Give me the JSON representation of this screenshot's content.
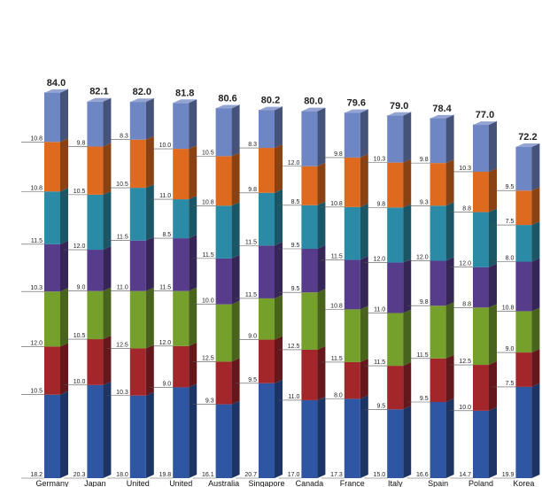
{
  "chart_data": {
    "type": "bar",
    "stacked": true,
    "categories": [
      "Germany",
      "Japan",
      "United States",
      "United Kingdom",
      "Australia",
      "Singapore",
      "Canada",
      "France",
      "Italy",
      "Spain",
      "Poland",
      "Korea"
    ],
    "totals": [
      84.0,
      82.1,
      82.0,
      81.8,
      80.6,
      80.2,
      80.0,
      79.6,
      79.0,
      78.4,
      77.0,
      72.2
    ],
    "series": [
      {
        "color": "#2f56a3",
        "values": [
          18.2,
          20.3,
          18.0,
          19.8,
          16.1,
          20.7,
          17.0,
          17.3,
          15.0,
          16.6,
          14.7,
          19.9
        ]
      },
      {
        "color": "#a3262b",
        "values": [
          10.5,
          10.0,
          10.3,
          9.0,
          9.3,
          9.5,
          11.0,
          8.0,
          9.5,
          9.5,
          10.0,
          7.5
        ]
      },
      {
        "color": "#74a02b",
        "values": [
          12.0,
          10.5,
          12.5,
          12.0,
          12.5,
          9.0,
          12.5,
          11.5,
          11.5,
          11.5,
          12.5,
          9.0
        ]
      },
      {
        "color": "#573c8c",
        "values": [
          10.3,
          9.0,
          11.0,
          11.5,
          10.0,
          11.5,
          9.5,
          10.8,
          11.0,
          9.8,
          8.8,
          10.8
        ]
      },
      {
        "color": "#2b8aa6",
        "values": [
          11.5,
          12.0,
          11.5,
          8.5,
          11.5,
          11.5,
          9.5,
          11.5,
          12.0,
          12.0,
          12.0,
          8.0
        ]
      },
      {
        "color": "#de6a1f",
        "values": [
          10.8,
          10.5,
          10.5,
          11.0,
          10.8,
          9.8,
          8.5,
          10.8,
          9.8,
          9.3,
          8.8,
          7.5
        ]
      },
      {
        "color": "#6f86c4",
        "values": [
          10.8,
          9.8,
          8.3,
          10.0,
          10.5,
          8.3,
          12.0,
          9.8,
          10.3,
          9.8,
          10.3,
          9.5
        ]
      }
    ],
    "ylim": [
      0,
      84
    ],
    "legend": "none",
    "grid": false
  }
}
